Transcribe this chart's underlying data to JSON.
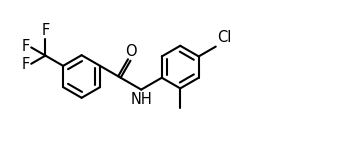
{
  "bg_color": "#ffffff",
  "line_color": "#000000",
  "line_width": 1.5,
  "font_size": 10.5,
  "figure_size": [
    3.64,
    1.53
  ],
  "dpi": 100,
  "xlim": [
    0.0,
    7.8
  ],
  "ylim": [
    -0.5,
    3.2
  ]
}
